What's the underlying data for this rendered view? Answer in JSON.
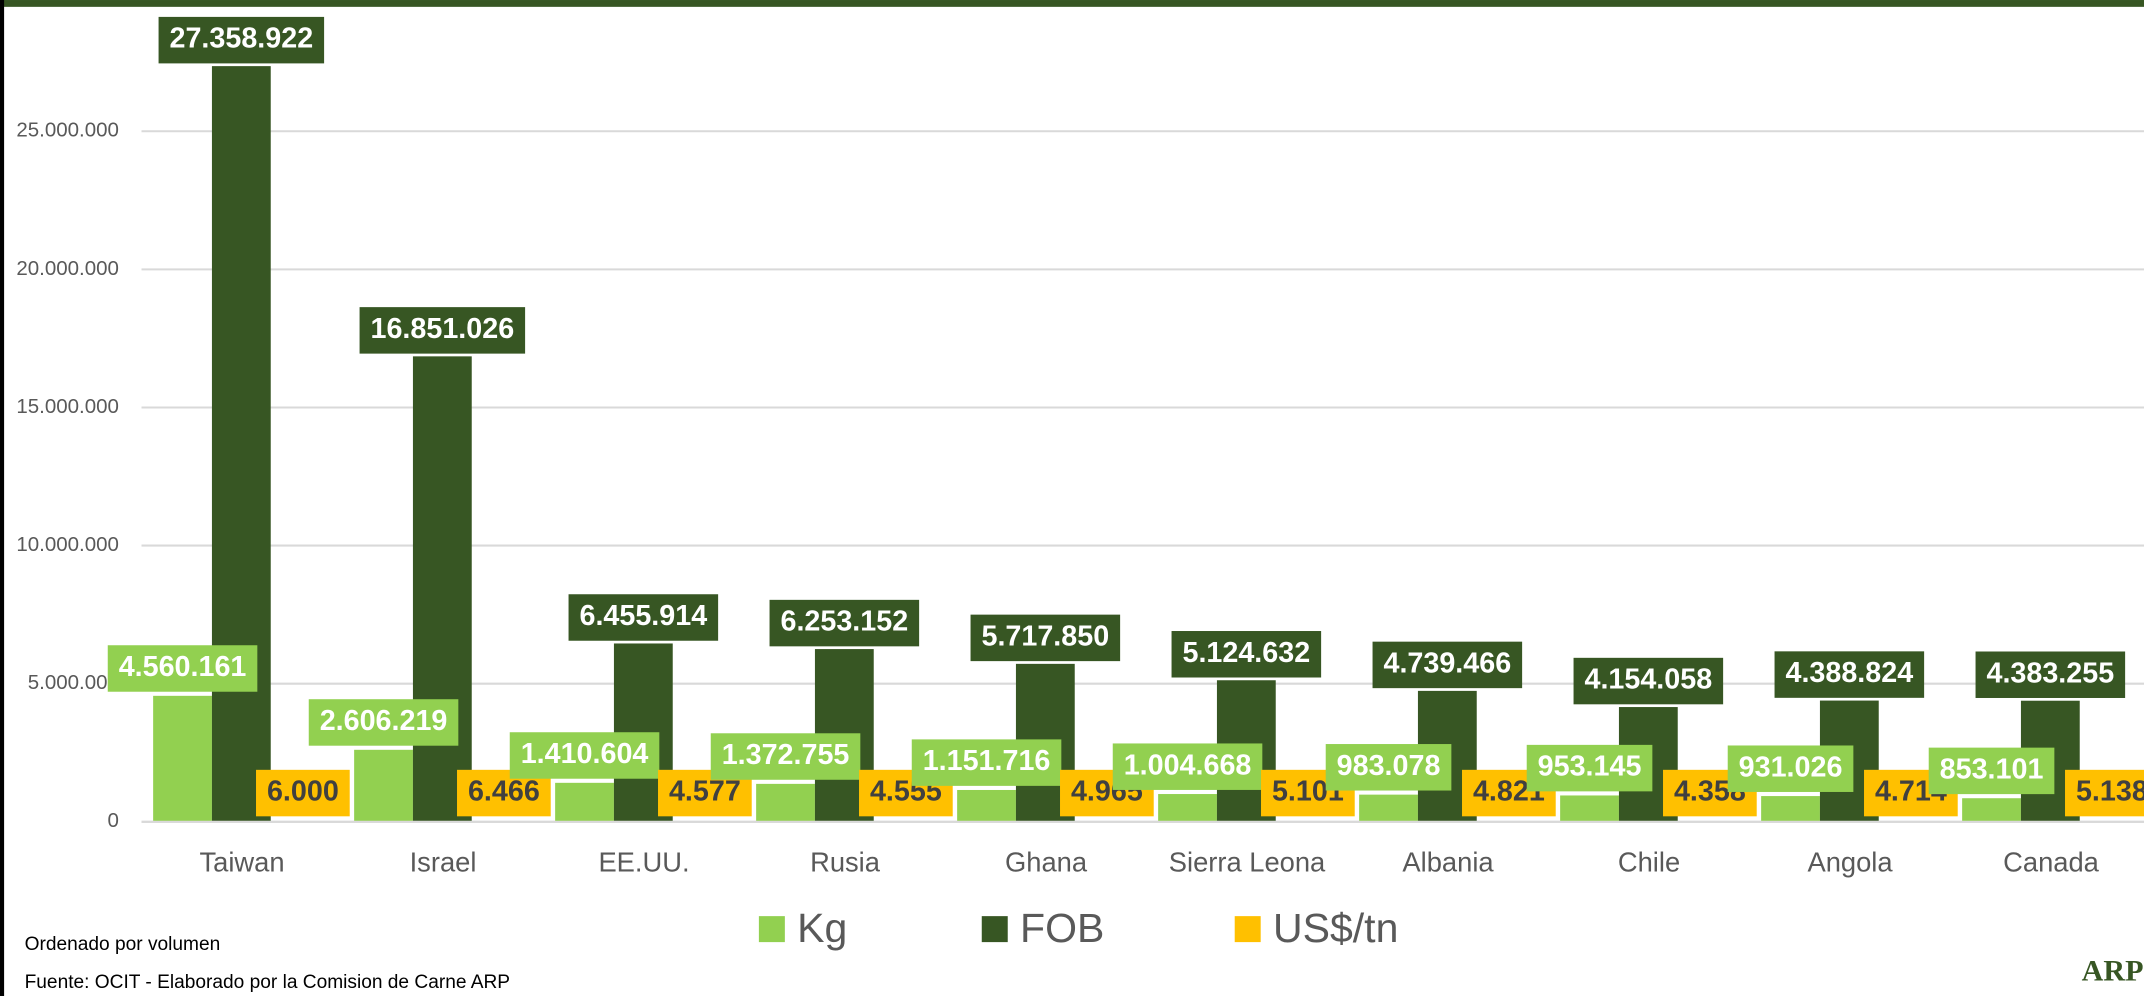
{
  "chart_data": {
    "type": "bar",
    "categories": [
      "Taiwan",
      "Israel",
      "EE.UU.",
      "Rusia",
      "Ghana",
      "Sierra Leona",
      "Albania",
      "Chile",
      "Angola",
      "Canada"
    ],
    "series": [
      {
        "name": "Kg",
        "color": "#92d050",
        "values": [
          4560161,
          2606219,
          1410604,
          1372755,
          1151716,
          1004668,
          983078,
          953145,
          931026,
          853101
        ],
        "value_labels": [
          "4.560.161",
          "2.606.219",
          "1.410.604",
          "1.372.755",
          "1.151.716",
          "1.004.668",
          "983.078",
          "953.145",
          "931.026",
          "853.101"
        ]
      },
      {
        "name": "FOB",
        "color": "#375623",
        "values": [
          27358922,
          16851026,
          6455914,
          6253152,
          5717850,
          5124632,
          4739466,
          4154058,
          4388824,
          4383255
        ],
        "value_labels": [
          "27.358.922",
          "16.851.026",
          "6.455.914",
          "6.253.152",
          "5.717.850",
          "5.124.632",
          "4.739.466",
          "4.154.058",
          "4.388.824",
          "4.383.255"
        ]
      },
      {
        "name": "US$/tn",
        "color": "#ffc000",
        "values": [
          6000,
          6466,
          4577,
          4555,
          4965,
          5101,
          4821,
          4358,
          4714,
          5138
        ],
        "value_labels": [
          "6.000",
          "6.466",
          "4.577",
          "4.555",
          "4.965",
          "5.101",
          "4.821",
          "4.358",
          "4.714",
          "5.138"
        ]
      }
    ],
    "ylim": [
      0,
      29000000
    ],
    "yticks": [
      0,
      {
        "value": 5000000,
        "label": "5.000.000"
      },
      {
        "value": 10000000,
        "label": "10.000.000"
      },
      {
        "value": 15000000,
        "label": "15.000.000"
      },
      {
        "value": 20000000,
        "label": "20.000.000"
      },
      {
        "value": 25000000,
        "label": "25.000.000"
      }
    ],
    "grid": true,
    "notes": [
      "Ordenado por volumen",
      "Fuente: OCIT -  Elaborado por la Comision de Carne ARP"
    ],
    "logo": "ARP"
  }
}
